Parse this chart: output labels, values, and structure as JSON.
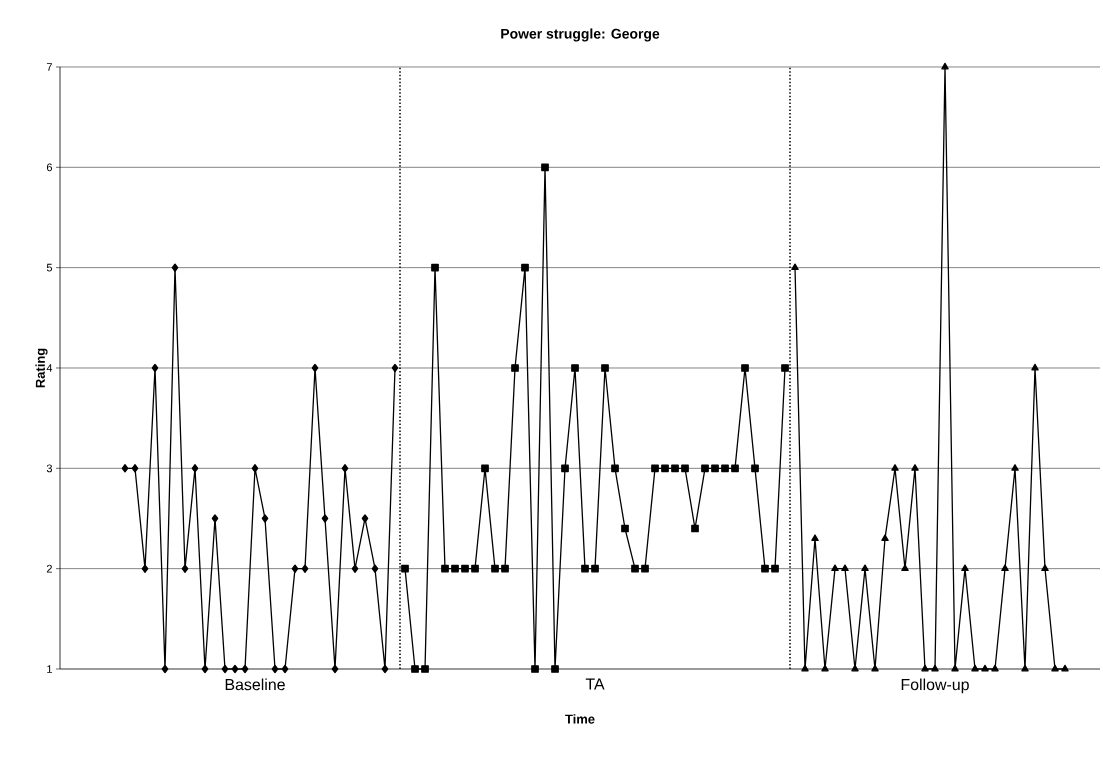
{
  "chart_data": {
    "type": "line",
    "title": "Power struggle: George",
    "xlabel": "Time",
    "ylabel": "Rating",
    "categories": [
      null,
      null,
      null,
      null,
      null,
      null,
      null,
      null,
      null,
      null,
      null,
      null,
      null,
      null,
      null,
      null,
      null,
      null,
      null,
      "Baseline",
      null,
      null,
      null,
      null,
      null,
      null,
      null,
      null,
      null,
      null,
      null,
      null,
      null,
      null,
      null,
      null,
      null,
      null,
      null,
      null,
      null,
      null,
      null,
      null,
      null,
      null,
      null,
      null,
      null,
      null,
      null,
      null,
      null,
      "TA",
      null,
      null,
      null,
      null,
      null,
      null,
      null,
      null,
      null,
      null,
      null,
      null,
      null,
      null,
      null,
      null,
      null,
      null,
      null,
      null,
      null,
      null,
      null,
      null,
      null,
      null,
      null,
      null,
      null,
      null,
      null,
      null,
      null,
      "Follow-up",
      null,
      null,
      null,
      null,
      null,
      null,
      null,
      null,
      null,
      null,
      null,
      null,
      null,
      null,
      null,
      null
    ],
    "series": [
      {
        "color": "#000000",
        "marker": "diamond",
        "values": [
          null,
          null,
          null,
          null,
          null,
          null,
          3,
          3,
          2,
          4,
          1,
          5,
          2,
          3,
          1,
          2.5,
          1,
          1,
          1,
          3,
          2.5,
          1,
          1,
          2,
          2,
          4,
          2.5,
          1,
          3,
          2,
          2.5,
          2,
          1,
          4,
          null,
          null,
          null,
          null,
          null,
          null,
          null,
          null,
          null,
          null,
          null,
          null,
          null,
          null,
          null,
          null,
          null,
          null,
          null,
          null,
          null,
          null,
          null,
          null,
          null,
          null,
          null,
          null,
          null,
          null,
          null,
          null,
          null,
          null,
          null,
          null,
          null,
          null,
          null,
          null,
          null,
          null,
          null,
          null,
          null,
          null,
          null,
          null,
          null,
          null,
          null,
          null,
          null,
          null,
          null,
          null,
          null,
          null,
          null,
          null,
          null,
          null,
          null,
          null,
          null,
          null,
          null,
          null,
          null,
          null
        ]
      },
      {
        "color": "#000000",
        "marker": "square",
        "values": [
          null,
          null,
          null,
          null,
          null,
          null,
          null,
          null,
          null,
          null,
          null,
          null,
          null,
          null,
          null,
          null,
          null,
          null,
          null,
          null,
          null,
          null,
          null,
          null,
          null,
          null,
          null,
          null,
          null,
          null,
          null,
          null,
          null,
          null,
          2,
          1,
          1,
          5,
          2,
          2,
          2,
          2,
          3,
          2,
          2,
          4,
          5,
          1,
          6,
          1,
          3,
          4,
          2,
          2,
          4,
          3,
          2.4,
          2,
          2,
          3,
          3,
          3,
          3,
          2.4,
          3,
          3,
          3,
          3,
          4,
          3,
          2,
          2,
          4,
          null,
          null,
          null,
          null,
          null,
          null,
          null,
          null,
          null,
          null,
          null,
          null,
          null,
          null,
          null,
          null,
          null,
          null,
          null,
          null,
          null,
          null,
          null,
          null,
          null,
          null,
          null,
          null,
          null,
          null,
          null
        ]
      },
      {
        "color": "#000000",
        "marker": "triangle",
        "values": [
          null,
          null,
          null,
          null,
          null,
          null,
          null,
          null,
          null,
          null,
          null,
          null,
          null,
          null,
          null,
          null,
          null,
          null,
          null,
          null,
          null,
          null,
          null,
          null,
          null,
          null,
          null,
          null,
          null,
          null,
          null,
          null,
          null,
          null,
          null,
          null,
          null,
          null,
          null,
          null,
          null,
          null,
          null,
          null,
          null,
          null,
          null,
          null,
          null,
          null,
          null,
          null,
          null,
          null,
          null,
          null,
          null,
          null,
          null,
          null,
          null,
          null,
          null,
          null,
          null,
          null,
          null,
          null,
          null,
          null,
          null,
          null,
          null,
          5,
          1,
          2.3,
          1,
          2,
          2,
          1,
          2,
          1,
          2.3,
          3,
          2,
          3,
          1,
          1,
          7,
          1,
          2,
          1,
          1,
          1,
          2,
          3,
          1,
          4,
          2,
          1,
          1,
          null,
          null,
          null
        ]
      }
    ],
    "ylim": [
      1,
      7
    ],
    "yticks": [
      1,
      2,
      3,
      4,
      5,
      6,
      7
    ],
    "grid": "y",
    "line_style": "solid"
  }
}
